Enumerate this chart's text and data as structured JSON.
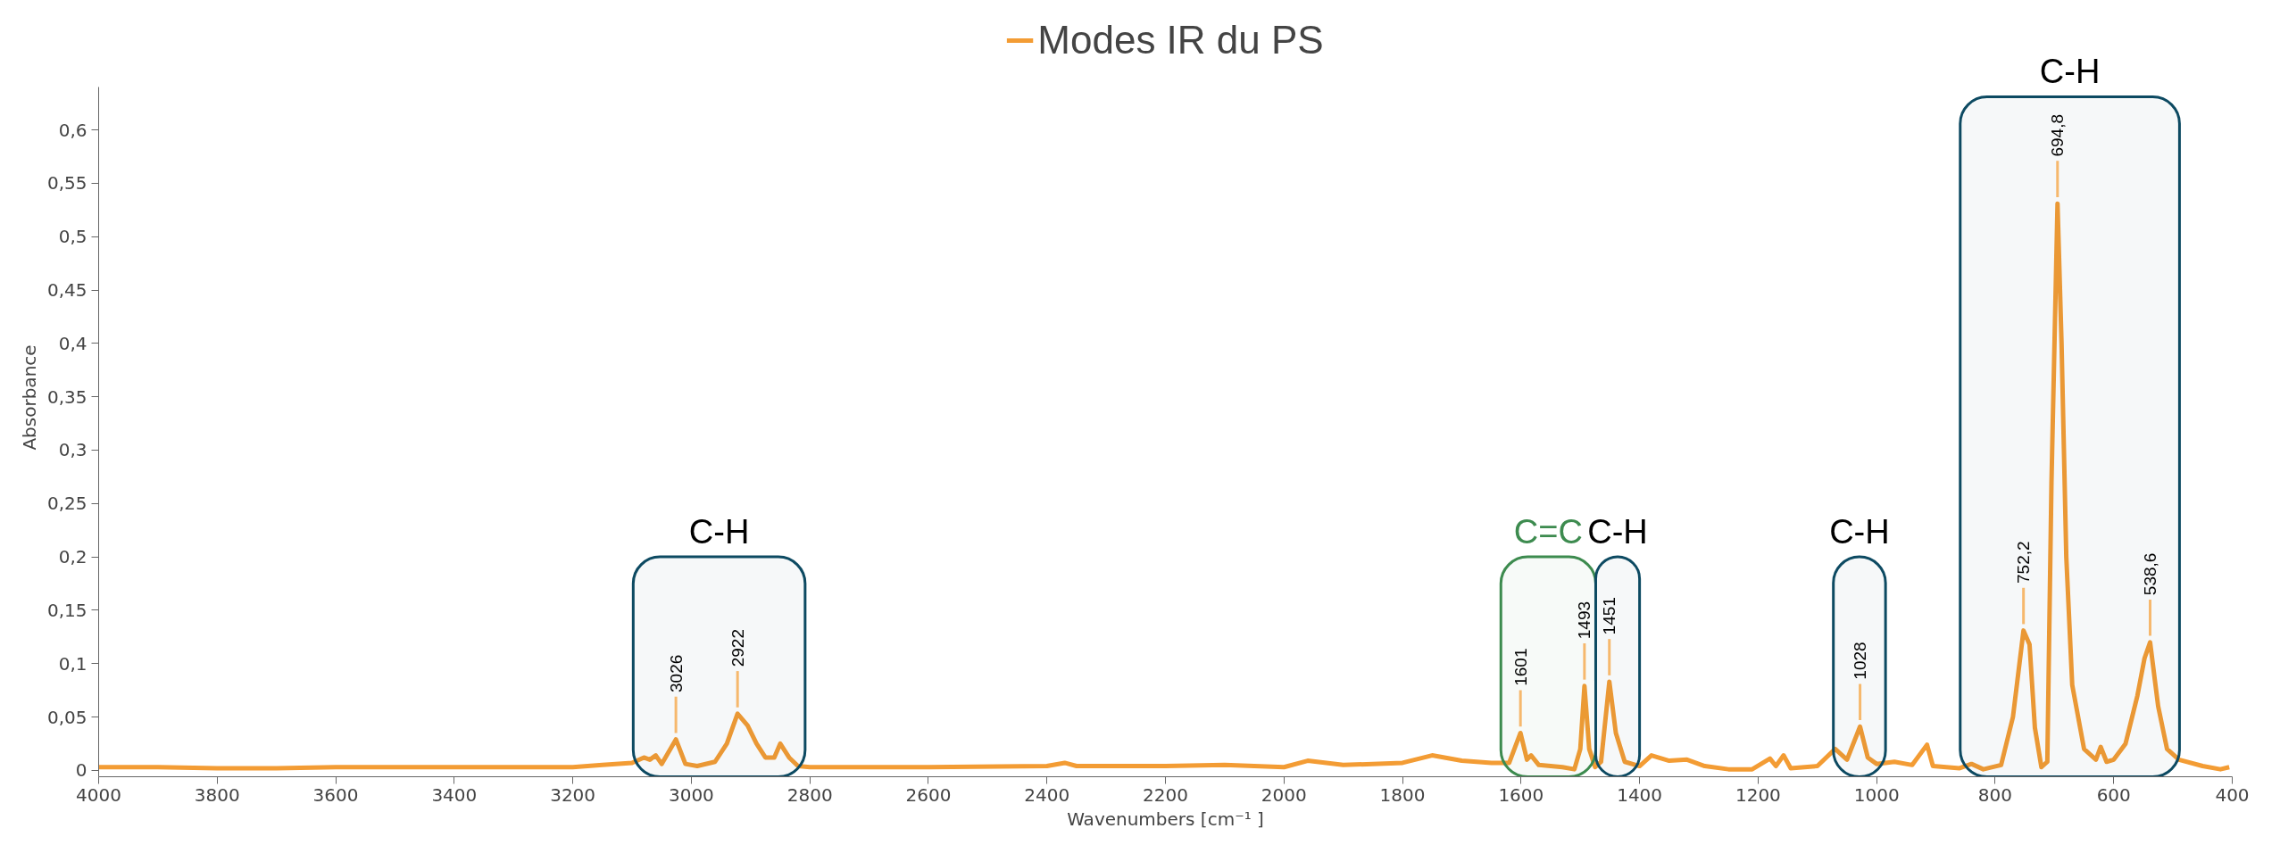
{
  "chart_data": {
    "type": "line",
    "xlabel": "Wavenumbers [cm⁻¹ ]",
    "ylabel": "Absorbance",
    "xlim": [
      4000,
      400
    ],
    "ylim": [
      -0.006,
      0.64
    ],
    "xticks": [
      4000,
      3800,
      3600,
      3400,
      3200,
      3000,
      2800,
      2600,
      2400,
      2200,
      2000,
      1800,
      1600,
      1400,
      1200,
      1000,
      800,
      600,
      400
    ],
    "yticks": [
      0,
      {
        "value": 0.05,
        "label": "0,05"
      },
      {
        "value": 0.1,
        "label": "0,1"
      },
      {
        "value": 0.15,
        "label": "0,15"
      },
      {
        "value": 0.2,
        "label": "0,2"
      },
      {
        "value": 0.25,
        "label": "0,25"
      },
      {
        "value": 0.3,
        "label": "0,3"
      },
      {
        "value": 0.35,
        "label": "0,35"
      },
      {
        "value": 0.4,
        "label": "0,4"
      },
      {
        "value": 0.45,
        "label": "0,45"
      },
      {
        "value": 0.5,
        "label": "0,5"
      },
      {
        "value": 0.55,
        "label": "0,55"
      },
      {
        "value": 0.6,
        "label": "0,6"
      }
    ],
    "grid": false,
    "legend": "top",
    "marker": "none",
    "line_style": "solid",
    "x": [
      4000,
      3900,
      3800,
      3700,
      3600,
      3400,
      3200,
      3150,
      3100,
      3080,
      3070,
      3060,
      3050,
      3026,
      3010,
      2990,
      2960,
      2940,
      2922,
      2905,
      2890,
      2875,
      2860,
      2850,
      2835,
      2820,
      2800,
      2600,
      2400,
      2370,
      2350,
      2200,
      2100,
      2000,
      1960,
      1900,
      1800,
      1750,
      1700,
      1650,
      1620,
      1601,
      1590,
      1583,
      1570,
      1530,
      1510,
      1500,
      1493,
      1485,
      1475,
      1465,
      1451,
      1440,
      1425,
      1400,
      1380,
      1350,
      1320,
      1290,
      1250,
      1210,
      1180,
      1170,
      1157,
      1145,
      1100,
      1070,
      1050,
      1028,
      1015,
      1000,
      970,
      940,
      915,
      905,
      860,
      840,
      820,
      790,
      770,
      752.2,
      742,
      733,
      722,
      712,
      705,
      694.8,
      688,
      680,
      670,
      650,
      630,
      622,
      612,
      600,
      580,
      560,
      548,
      538.6,
      525,
      510,
      490,
      450,
      420,
      405
    ],
    "series": [
      {
        "name": "Modes IR du PS",
        "color": "#f39c34",
        "values": [
          0.003,
          0.003,
          0.002,
          0.002,
          0.003,
          0.003,
          0.003,
          0.005,
          0.007,
          0.012,
          0.01,
          0.014,
          0.006,
          0.029,
          0.006,
          0.004,
          0.008,
          0.025,
          0.053,
          0.042,
          0.025,
          0.012,
          0.012,
          0.025,
          0.012,
          0.004,
          0.003,
          0.003,
          0.004,
          0.007,
          0.004,
          0.004,
          0.005,
          0.003,
          0.009,
          0.005,
          0.007,
          0.014,
          0.009,
          0.007,
          0.007,
          0.035,
          0.01,
          0.014,
          0.005,
          0.003,
          0.001,
          0.02,
          0.079,
          0.02,
          0.003,
          0.008,
          0.083,
          0.035,
          0.008,
          0.004,
          0.014,
          0.009,
          0.01,
          0.004,
          0.001,
          0.001,
          0.011,
          0.004,
          0.014,
          0.002,
          0.004,
          0.02,
          0.01,
          0.041,
          0.012,
          0.006,
          0.008,
          0.005,
          0.024,
          0.004,
          0.002,
          0.006,
          0.001,
          0.005,
          0.05,
          0.131,
          0.118,
          0.04,
          0.003,
          0.008,
          0.27,
          0.531,
          0.4,
          0.2,
          0.08,
          0.02,
          0.01,
          0.022,
          0.008,
          0.01,
          0.025,
          0.07,
          0.105,
          0.12,
          0.06,
          0.02,
          0.01,
          0.004,
          0.001,
          0.003
        ]
      }
    ],
    "bands": [
      {
        "axis": "x",
        "from": 3098,
        "to": 2808,
        "label": "C-H",
        "color": "#0d4a62"
      },
      {
        "axis": "x",
        "from": 1634,
        "to": 1474,
        "label": "C=C",
        "color": "#3d8b4f"
      },
      {
        "axis": "x",
        "from": 1474,
        "to": 1400,
        "label": "C-H",
        "color": "#0d4a62"
      },
      {
        "axis": "x",
        "from": 1073,
        "to": 985,
        "label": "C-H",
        "color": "#0d4a62"
      },
      {
        "axis": "x",
        "from": 859,
        "to": 489,
        "label": "C-H",
        "color": "#0d4a62"
      }
    ],
    "annotations": [
      {
        "text": "3026",
        "x": 3026,
        "y": 0.029
      },
      {
        "text": "2922",
        "x": 2922,
        "y": 0.053
      },
      {
        "text": "1601",
        "x": 1601,
        "y": 0.035
      },
      {
        "text": "1493",
        "x": 1493,
        "y": 0.079
      },
      {
        "text": "1451",
        "x": 1451,
        "y": 0.083
      },
      {
        "text": "1028",
        "x": 1028,
        "y": 0.041
      },
      {
        "text": "752,2",
        "x": 752.2,
        "y": 0.131
      },
      {
        "text": "694,8",
        "x": 694.8,
        "y": 0.531
      },
      {
        "text": "538,6",
        "x": 538.6,
        "y": 0.12
      }
    ]
  }
}
